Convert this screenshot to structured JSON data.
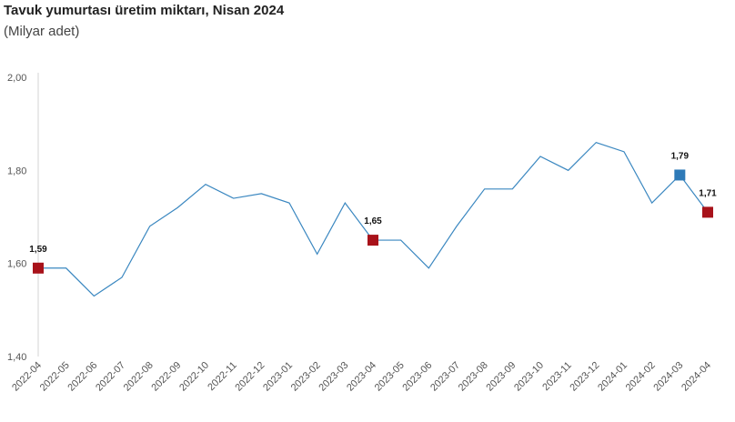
{
  "chart_data": {
    "type": "line",
    "title": "Tavuk yumurtası üretim miktarı, Nisan 2024",
    "subtitle": "(Milyar adet)",
    "xlabel": "",
    "ylabel": "",
    "ylim": [
      1.4,
      2.0
    ],
    "yticks": [
      "1,40",
      "1,60",
      "1,80",
      "2,00"
    ],
    "grid": false,
    "categories": [
      "2022-04",
      "2022-05",
      "2022-06",
      "2022-07",
      "2022-08",
      "2022-09",
      "2022-10",
      "2022-11",
      "2022-12",
      "2023-01",
      "2023-02",
      "2023-03",
      "2023-04",
      "2023-05",
      "2023-06",
      "2023-07",
      "2023-08",
      "2023-09",
      "2023-10",
      "2023-11",
      "2023-12",
      "2024-01",
      "2024-02",
      "2024-03",
      "2024-04"
    ],
    "series": [
      {
        "values": [
          1.59,
          1.59,
          1.53,
          1.57,
          1.68,
          1.72,
          1.77,
          1.74,
          1.75,
          1.73,
          1.62,
          1.73,
          1.65,
          1.65,
          1.59,
          1.68,
          1.76,
          1.76,
          1.83,
          1.8,
          1.86,
          1.84,
          1.73,
          1.79,
          1.71
        ],
        "color": "#3a87c0"
      }
    ],
    "highlighted_points": [
      {
        "category": "2022-04",
        "label": "1,59",
        "color": "#a8121a"
      },
      {
        "category": "2023-04",
        "label": "1,65",
        "color": "#a8121a"
      },
      {
        "category": "2024-03",
        "label": "1,79",
        "color": "#2e7ab8"
      },
      {
        "category": "2024-04",
        "label": "1,71",
        "color": "#a8121a"
      }
    ]
  }
}
